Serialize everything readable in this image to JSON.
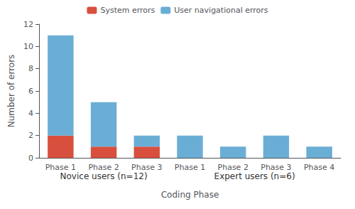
{
  "chart_data": {
    "type": "bar",
    "stacked": true,
    "categories": [
      "Phase 1",
      "Phase 2",
      "Phase 3",
      "Phase 1",
      "Phase 2",
      "Phase 3",
      "Phase 4"
    ],
    "groups": [
      {
        "label": "Novice users (n=12)",
        "categories": [
          "Phase 1",
          "Phase 2",
          "Phase 3"
        ]
      },
      {
        "label": "Expert users (n=6)",
        "categories": [
          "Phase 1",
          "Phase 2",
          "Phase 3",
          "Phase 4"
        ]
      }
    ],
    "series": [
      {
        "name": "System errors",
        "color": "#d94f3d",
        "values": [
          2,
          1,
          1,
          0,
          0,
          0,
          0
        ]
      },
      {
        "name": "User navigational errors",
        "color": "#6aaed6",
        "values": [
          9,
          4,
          1,
          2,
          1,
          2,
          1
        ]
      }
    ],
    "xlabel": "Coding Phase",
    "ylabel": "Number of errors",
    "ylim": [
      0,
      12
    ],
    "yticks": [
      0,
      2,
      4,
      6,
      8,
      10,
      12
    ],
    "grid": false,
    "legend": "top"
  }
}
